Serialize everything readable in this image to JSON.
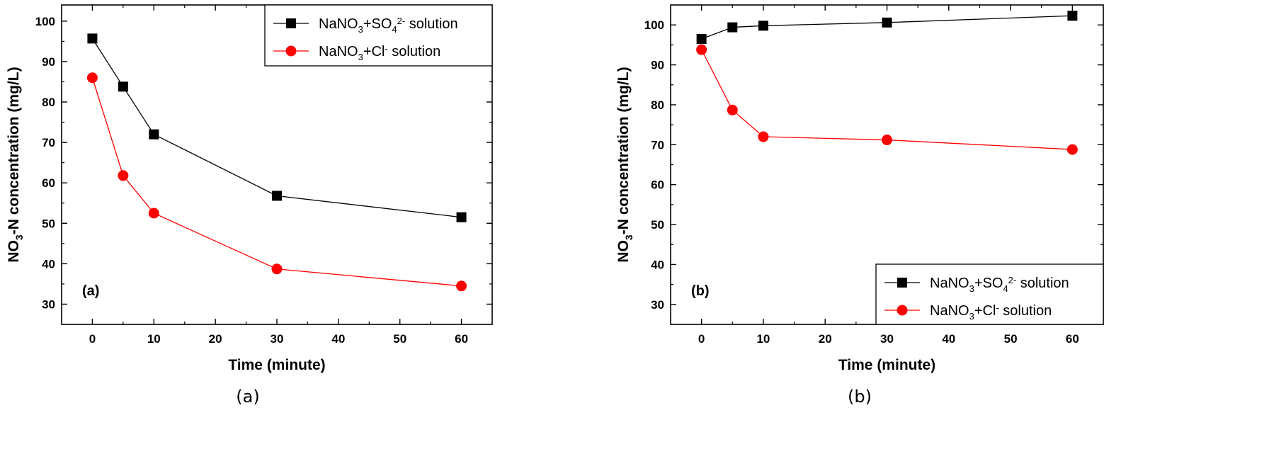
{
  "chart_data": [
    {
      "type": "line",
      "panel_label": "(a)",
      "caption": "(a)",
      "xlabel": "Time (minute)",
      "ylabel_parts": [
        "NO",
        "3",
        "-N concentration (mg/L)"
      ],
      "xlim": [
        -5,
        65
      ],
      "ylim": [
        25,
        104
      ],
      "xticks": [
        0,
        10,
        20,
        30,
        40,
        50,
        60
      ],
      "yticks": [
        30,
        40,
        50,
        60,
        70,
        80,
        90,
        100
      ],
      "grid": false,
      "legend_position": "top-right",
      "x": [
        0,
        5,
        10,
        30,
        60
      ],
      "series": [
        {
          "legend_parts": [
            "NaNO",
            "3",
            "+SO",
            "4",
            "2-",
            " solution"
          ],
          "marker": "square",
          "color": "#000000",
          "values": [
            95.7,
            83.8,
            72.0,
            56.8,
            51.5
          ]
        },
        {
          "legend_parts": [
            "NaNO",
            "3",
            "+Cl",
            "-",
            " solution"
          ],
          "marker": "circle",
          "color": "#ff0000",
          "values": [
            86.0,
            61.8,
            52.5,
            38.7,
            34.5
          ]
        }
      ]
    },
    {
      "type": "line",
      "panel_label": "(b)",
      "caption": "(b)",
      "xlabel": "Time (minute)",
      "ylabel_parts": [
        "NO",
        "3",
        "-N concentration (mg/L)"
      ],
      "xlim": [
        -5,
        65
      ],
      "ylim": [
        25,
        105
      ],
      "xticks": [
        0,
        10,
        20,
        30,
        40,
        50,
        60
      ],
      "yticks": [
        30,
        40,
        50,
        60,
        70,
        80,
        90,
        100
      ],
      "grid": false,
      "legend_position": "bottom-right",
      "x": [
        0,
        5,
        10,
        30,
        60
      ],
      "series": [
        {
          "legend_parts": [
            "NaNO",
            "3",
            "+SO",
            "4",
            "2-",
            " solution"
          ],
          "marker": "square",
          "color": "#000000",
          "values": [
            96.5,
            99.4,
            99.8,
            100.6,
            102.3
          ]
        },
        {
          "legend_parts": [
            "NaNO",
            "3",
            "+Cl",
            "-",
            " solution"
          ],
          "marker": "circle",
          "color": "#ff0000",
          "values": [
            93.8,
            78.7,
            72.0,
            71.2,
            68.8
          ]
        }
      ]
    }
  ]
}
